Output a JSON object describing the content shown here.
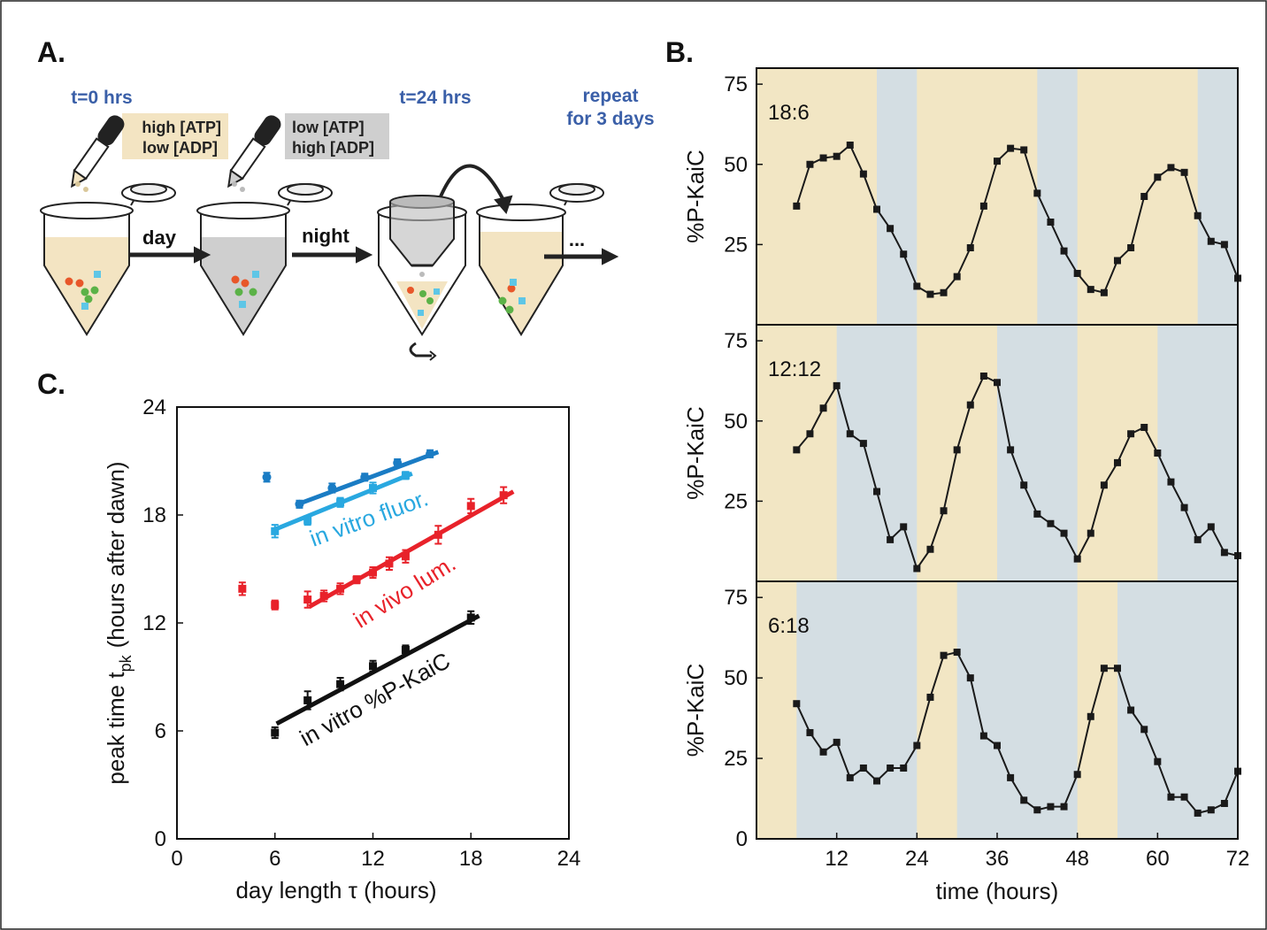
{
  "panel_labels": [
    "A.",
    "B.",
    "C."
  ],
  "diagram": {
    "start_time": "t=0 hrs",
    "end_time": "t=24 hrs",
    "repeat": [
      "repeat",
      "for 3 days"
    ],
    "day_buffer": [
      "high [ATP]",
      "low [ADP]"
    ],
    "night_buffer": [
      "low [ATP]",
      "high [ADP]"
    ],
    "day": "day",
    "night": "night",
    "continue": "..."
  },
  "chart_data": [
    {
      "type": "line",
      "title": "18:6",
      "ylabel": "%P-KaiC",
      "color": "#1a1a1a",
      "x": [
        6,
        8,
        10,
        12,
        14,
        16,
        18,
        20,
        22,
        24,
        26,
        28,
        30,
        32,
        34,
        36,
        38,
        40,
        42,
        44,
        46,
        48,
        50,
        52,
        54,
        56,
        58,
        60,
        62,
        64,
        66,
        68,
        70,
        72
      ],
      "values": [
        37,
        50,
        52,
        52.5,
        56,
        47,
        36,
        30,
        22,
        12,
        9.5,
        10,
        15,
        24,
        37,
        51,
        55,
        54.5,
        41,
        32,
        23,
        16,
        11,
        10,
        20,
        24,
        40,
        46,
        49,
        47.5,
        34,
        26,
        25,
        14.5
      ],
      "xlim": [
        0,
        72
      ],
      "ylim": [
        0,
        80
      ],
      "yticks": [
        25,
        50,
        75
      ],
      "day_intervals": [
        [
          0,
          18
        ],
        [
          24,
          42
        ],
        [
          48,
          66
        ]
      ],
      "day_color": "#f2e6c4",
      "night_color": "#d4dee3"
    },
    {
      "type": "line",
      "title": "12:12",
      "ylabel": "%P-KaiC",
      "color": "#1a1a1a",
      "x": [
        6,
        8,
        10,
        12,
        14,
        16,
        18,
        20,
        22,
        24,
        26,
        28,
        30,
        32,
        34,
        36,
        38,
        40,
        42,
        44,
        46,
        48,
        50,
        52,
        54,
        56,
        58,
        60,
        62,
        64,
        66,
        68,
        70,
        72
      ],
      "values": [
        41,
        46,
        54,
        61,
        46,
        43,
        28,
        13,
        17,
        4,
        10,
        22,
        41,
        55,
        64,
        62,
        41,
        30,
        21,
        18,
        15,
        7,
        15,
        30,
        37,
        46,
        48,
        40,
        31,
        23,
        13,
        17,
        9,
        8
      ],
      "xlim": [
        0,
        72
      ],
      "ylim": [
        0,
        80
      ],
      "yticks": [
        25,
        50,
        75
      ],
      "day_intervals": [
        [
          0,
          12
        ],
        [
          24,
          36
        ],
        [
          48,
          60
        ]
      ],
      "day_color": "#f2e6c4",
      "night_color": "#d4dee3"
    },
    {
      "type": "line",
      "title": "6:18",
      "ylabel": "%P-KaiC",
      "xlabel": "time (hours)",
      "color": "#1a1a1a",
      "x": [
        6,
        8,
        10,
        12,
        14,
        16,
        18,
        20,
        22,
        24,
        26,
        28,
        30,
        32,
        34,
        36,
        38,
        40,
        42,
        44,
        46,
        48,
        50,
        52,
        54,
        56,
        58,
        60,
        62,
        64,
        66,
        68,
        70,
        72
      ],
      "values": [
        42,
        33,
        27,
        30,
        19,
        22,
        18,
        22,
        22,
        29,
        44,
        57,
        58,
        50,
        32,
        29,
        19,
        12,
        9,
        10,
        10,
        20,
        38,
        53,
        53,
        40,
        34,
        24,
        13,
        13,
        8,
        9,
        11,
        21
      ],
      "xlim": [
        0,
        72
      ],
      "ylim": [
        0,
        80
      ],
      "yticks": [
        0,
        25,
        50,
        75
      ],
      "xticks": [
        12,
        24,
        36,
        48,
        60,
        72
      ],
      "day_intervals": [
        [
          0,
          6
        ],
        [
          24,
          30
        ],
        [
          48,
          54
        ]
      ],
      "day_color": "#f2e6c4",
      "night_color": "#d4dee3"
    },
    {
      "type": "scatter",
      "xlabel": "day length τ (hours)",
      "ylabel": "peak time t",
      "ylabel_subscript": "pk",
      "ylabel_suffix": "(hours after dawn)",
      "xlim": [
        0,
        24
      ],
      "ylim": [
        0,
        24
      ],
      "xticks": [
        0,
        6,
        12,
        18,
        24
      ],
      "yticks": [
        0,
        6,
        12,
        18,
        24
      ],
      "series": [
        {
          "color": "#1a7cc4",
          "marker": "circle",
          "x": [
            5.5,
            7.5,
            9.5,
            11.5,
            13.5,
            15.5
          ],
          "values": [
            20.1,
            18.6,
            19.5,
            20.1,
            20.9,
            21.4
          ],
          "errors": [
            0.25,
            0.2,
            0.25,
            0.2,
            0.2,
            0.2
          ],
          "fit": {
            "x": [
              7.4,
              16.0
            ],
            "y": [
              18.6,
              21.5
            ]
          }
        },
        {
          "name": "in vitro fluor.",
          "color": "#29a8e0",
          "marker": "square",
          "x": [
            6,
            8,
            10,
            12,
            14
          ],
          "values": [
            17.1,
            17.7,
            18.7,
            19.5,
            20.2
          ],
          "errors": [
            0.35,
            0.25,
            0.25,
            0.3,
            0.2
          ],
          "fit": {
            "x": [
              6,
              14.4
            ],
            "y": [
              17.2,
              20.3
            ]
          }
        },
        {
          "name": "in vivo lum.",
          "color": "#e8222a",
          "marker": "square",
          "x": [
            4,
            6,
            8,
            9,
            10,
            11,
            12,
            13,
            14,
            16,
            18,
            20
          ],
          "values": [
            13.9,
            13,
            13.3,
            13.5,
            13.9,
            14.4,
            14.8,
            15.3,
            15.7,
            16.9,
            18.5,
            19.1
          ],
          "errors": [
            0.35,
            0.25,
            0.45,
            0.3,
            0.3,
            0.2,
            0.3,
            0.35,
            0.35,
            0.5,
            0.4,
            0.45
          ],
          "fit": {
            "x": [
              8.1,
              20.6
            ],
            "y": [
              12.9,
              19.3
            ]
          }
        },
        {
          "name": "in vitro %P-KaiC",
          "color": "#111111",
          "marker": "square",
          "x": [
            6,
            8,
            10,
            12,
            14,
            18
          ],
          "values": [
            5.9,
            7.7,
            8.6,
            9.6,
            10.5,
            12.3
          ],
          "errors": [
            0.3,
            0.5,
            0.35,
            0.3,
            0.25,
            0.35
          ],
          "fit": {
            "x": [
              6.1,
              18.5
            ],
            "y": [
              6.4,
              12.4
            ]
          }
        }
      ]
    }
  ]
}
